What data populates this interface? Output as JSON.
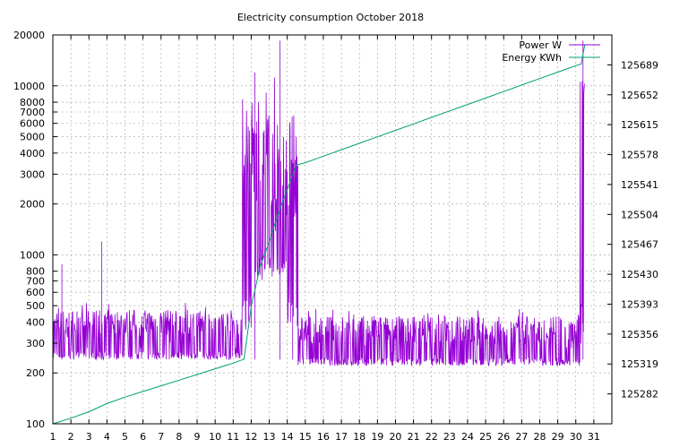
{
  "chart_data": {
    "type": "line",
    "title": "Electricity consumption October 2018",
    "xlabel": "",
    "ylabel": "",
    "y2label": "",
    "grid": true,
    "legend_position": "top-right",
    "x_axis": {
      "range": [
        1,
        32
      ],
      "ticks": [
        "1",
        "2",
        "3",
        "4",
        "5",
        "6",
        "7",
        "8",
        "9",
        "10",
        "11",
        "12",
        "13",
        "14",
        "15",
        "16",
        "17",
        "18",
        "19",
        "20",
        "21",
        "22",
        "23",
        "24",
        "25",
        "26",
        "27",
        "28",
        "29",
        "30",
        "31"
      ]
    },
    "y_axis_left": {
      "scale": "log",
      "range": [
        100,
        20000
      ],
      "ticks": [
        100,
        200,
        300,
        400,
        500,
        600,
        700,
        800,
        1000,
        2000,
        3000,
        4000,
        5000,
        6000,
        7000,
        8000,
        10000,
        20000
      ],
      "tick_labels": [
        "100",
        "200",
        "300",
        "400",
        "500",
        "600",
        "700",
        "800",
        "1000",
        "2000",
        "3000",
        "4000",
        "5000",
        "6000",
        "7000",
        "8000",
        "10000",
        "20000"
      ]
    },
    "y_axis_right": {
      "scale": "linear",
      "range": [
        125245,
        125726
      ],
      "ticks": [
        125282,
        125319,
        125356,
        125393,
        125430,
        125467,
        125504,
        125541,
        125578,
        125615,
        125652,
        125689
      ],
      "tick_labels": [
        "125282",
        "125319",
        "125356",
        "125393",
        "125430",
        "125467",
        "125504",
        "125541",
        "125578",
        "125615",
        "125652",
        "125689"
      ]
    },
    "series": [
      {
        "name": "Power W",
        "color": "#9400d3",
        "axis": "left",
        "segments": [
          {
            "x_start": 1.0,
            "x_end": 11.5,
            "low": 240,
            "mid": 330,
            "high": 520
          },
          {
            "x_start": 11.5,
            "x_end": 12.0,
            "low": 350,
            "mid": 2500,
            "high": 12000
          },
          {
            "x_start": 12.0,
            "x_end": 13.3,
            "low": 700,
            "mid": 1800,
            "high": 12000
          },
          {
            "x_start": 13.3,
            "x_end": 14.0,
            "low": 700,
            "mid": 1600,
            "high": 10500
          },
          {
            "x_start": 14.0,
            "x_end": 14.6,
            "low": 360,
            "mid": 1200,
            "high": 10500
          },
          {
            "x_start": 14.6,
            "x_end": 30.2,
            "low": 220,
            "mid": 300,
            "high": 480
          },
          {
            "x_start": 30.2,
            "x_end": 30.5,
            "low": 230,
            "mid": 9000,
            "high": 11500
          }
        ],
        "spikes": [
          {
            "x": 1.5,
            "value": 880
          },
          {
            "x": 3.7,
            "value": 1200
          },
          {
            "x": 12.2,
            "value": 12000
          },
          {
            "x": 13.6,
            "value": 18500
          },
          {
            "x": 14.3,
            "value": 3500
          },
          {
            "x": 30.4,
            "value": 18500
          }
        ]
      },
      {
        "name": "Energy KWh",
        "color": "#009e73",
        "axis": "right",
        "points": [
          [
            1.0,
            125245
          ],
          [
            2.0,
            125252
          ],
          [
            3.0,
            125260
          ],
          [
            4.0,
            125270
          ],
          [
            5.0,
            125278
          ],
          [
            6.0,
            125285
          ],
          [
            7.0,
            125292
          ],
          [
            8.0,
            125299
          ],
          [
            9.0,
            125306
          ],
          [
            10.0,
            125313
          ],
          [
            11.0,
            125320
          ],
          [
            11.6,
            125325
          ],
          [
            12.0,
            125390
          ],
          [
            12.5,
            125440
          ],
          [
            13.0,
            125470
          ],
          [
            13.5,
            125505
          ],
          [
            14.0,
            125535
          ],
          [
            14.5,
            125565
          ],
          [
            15.0,
            125568
          ],
          [
            16.0,
            125576
          ],
          [
            17.0,
            125584
          ],
          [
            18.0,
            125592
          ],
          [
            19.0,
            125600
          ],
          [
            20.0,
            125608
          ],
          [
            21.0,
            125616
          ],
          [
            22.0,
            125624
          ],
          [
            23.0,
            125632
          ],
          [
            24.0,
            125640
          ],
          [
            25.0,
            125648
          ],
          [
            26.0,
            125656
          ],
          [
            27.0,
            125664
          ],
          [
            28.0,
            125672
          ],
          [
            29.0,
            125680
          ],
          [
            30.0,
            125688
          ],
          [
            30.3,
            125690
          ],
          [
            30.5,
            125714
          ]
        ]
      }
    ]
  }
}
